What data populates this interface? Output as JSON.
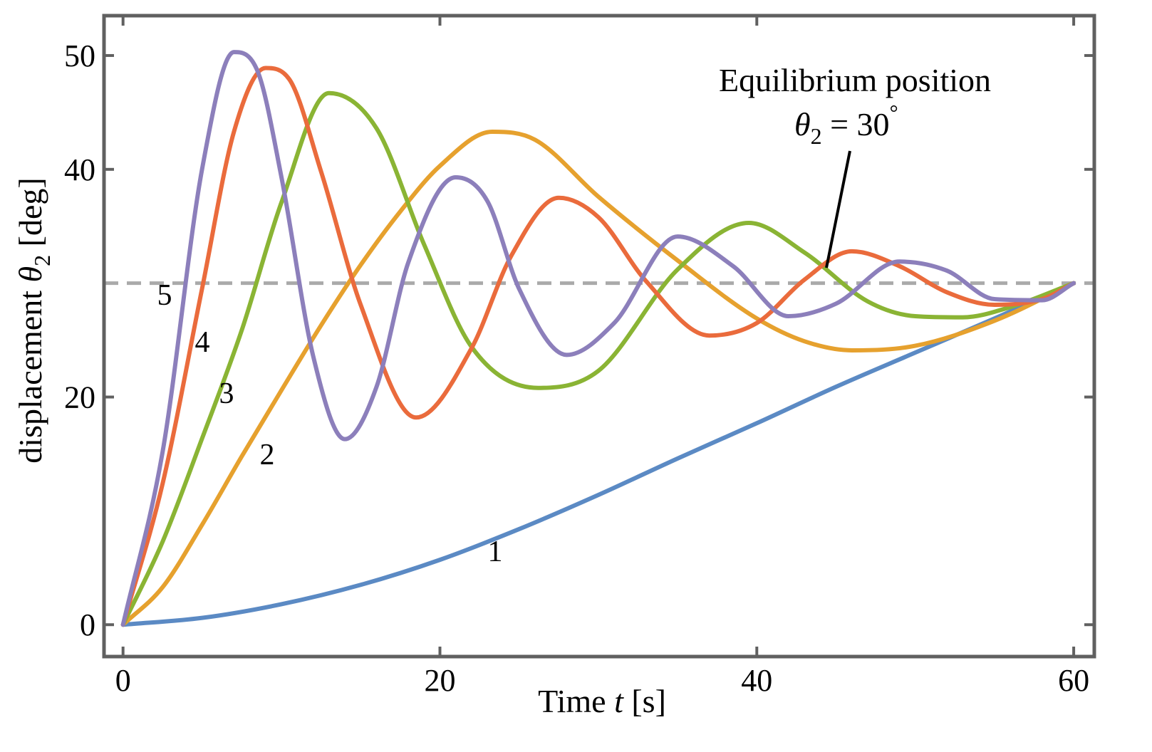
{
  "chart_data": {
    "type": "line",
    "title": "",
    "xlabel": "Time t [s]",
    "ylabel": "displacement θ2 [deg]",
    "xlabel_parts": {
      "pre": "Time ",
      "var": "t",
      "post": " [s]"
    },
    "ylabel_parts": {
      "pre": "displacement ",
      "var": "θ",
      "sub": "2",
      "post": " [deg]"
    },
    "xlim": [
      -1.2,
      61.3
    ],
    "ylim": [
      -2.8,
      53.5
    ],
    "xticks": [
      0,
      20,
      40,
      60
    ],
    "yticks": [
      0,
      20,
      40,
      50
    ],
    "grid": false,
    "equilibrium": {
      "y": 30,
      "color": "#aaaaaa",
      "label_line1": "Equilibrium position",
      "label_var": "θ",
      "label_sub": "2",
      "label_value": " = 30",
      "label_degree": "°"
    },
    "series": [
      {
        "name": "1",
        "label": "1",
        "color": "#5b8ac4",
        "x": [
          0,
          5,
          10,
          15,
          20,
          25,
          30,
          35,
          40,
          45,
          50,
          55,
          60
        ],
        "y": [
          0,
          0.6,
          1.8,
          3.5,
          5.7,
          8.4,
          11.4,
          14.6,
          17.7,
          20.9,
          23.9,
          26.9,
          30
        ]
      },
      {
        "name": "2",
        "label": "2",
        "color": "#e6a12e",
        "x": [
          0,
          2.5,
          5,
          7.5,
          10,
          12.5,
          15,
          17.5,
          20,
          23.3,
          26,
          30,
          35,
          40,
          43,
          46,
          50,
          55,
          60
        ],
        "y": [
          0,
          3.3,
          8.8,
          14.8,
          20.6,
          26.3,
          31.6,
          36.3,
          40.3,
          43.3,
          42.6,
          37.6,
          32,
          26.9,
          24.9,
          24.1,
          24.5,
          26.7,
          30
        ]
      },
      {
        "name": "3",
        "label": "3",
        "color": "#8ab434",
        "x": [
          0,
          2.5,
          5,
          7.5,
          10,
          13,
          16,
          19,
          22,
          26.2,
          30,
          35,
          39.5,
          43,
          47,
          50,
          53,
          56,
          60
        ],
        "y": [
          0,
          7.3,
          16.4,
          25.9,
          37.1,
          46.7,
          43.6,
          33.4,
          24.4,
          20.8,
          22.3,
          31.2,
          35.3,
          32.7,
          28.4,
          27.1,
          27.0,
          27.9,
          30
        ]
      },
      {
        "name": "4",
        "label": "4",
        "color": "#ea6b3c",
        "x": [
          0,
          2.5,
          5,
          7,
          9,
          10.5,
          12.5,
          15,
          18.5,
          22,
          24.5,
          27.5,
          30,
          33,
          37,
          40,
          43,
          46,
          49,
          52,
          55,
          58,
          60
        ],
        "y": [
          0,
          12.4,
          29.6,
          43.3,
          48.9,
          47.9,
          39.8,
          28.1,
          18.2,
          24.3,
          32.4,
          37.5,
          35.8,
          30.2,
          25.4,
          26.5,
          30.3,
          32.8,
          31.5,
          29.2,
          28.1,
          28.6,
          30
        ]
      },
      {
        "name": "5",
        "label": "5",
        "color": "#8c7fbb",
        "x": [
          0,
          2.5,
          5,
          7,
          8.5,
          10,
          12,
          14,
          16,
          18,
          21,
          23,
          25,
          28,
          31,
          35,
          38.5,
          42,
          45,
          49,
          52,
          55,
          58,
          60
        ],
        "y": [
          0,
          15.2,
          40.1,
          50.3,
          48.6,
          39.3,
          23.6,
          16.3,
          20.9,
          31.8,
          39.3,
          37.2,
          29.5,
          23.7,
          26.5,
          34.1,
          31.5,
          27.1,
          28.2,
          31.9,
          31.1,
          28.6,
          28.5,
          30
        ]
      }
    ]
  }
}
